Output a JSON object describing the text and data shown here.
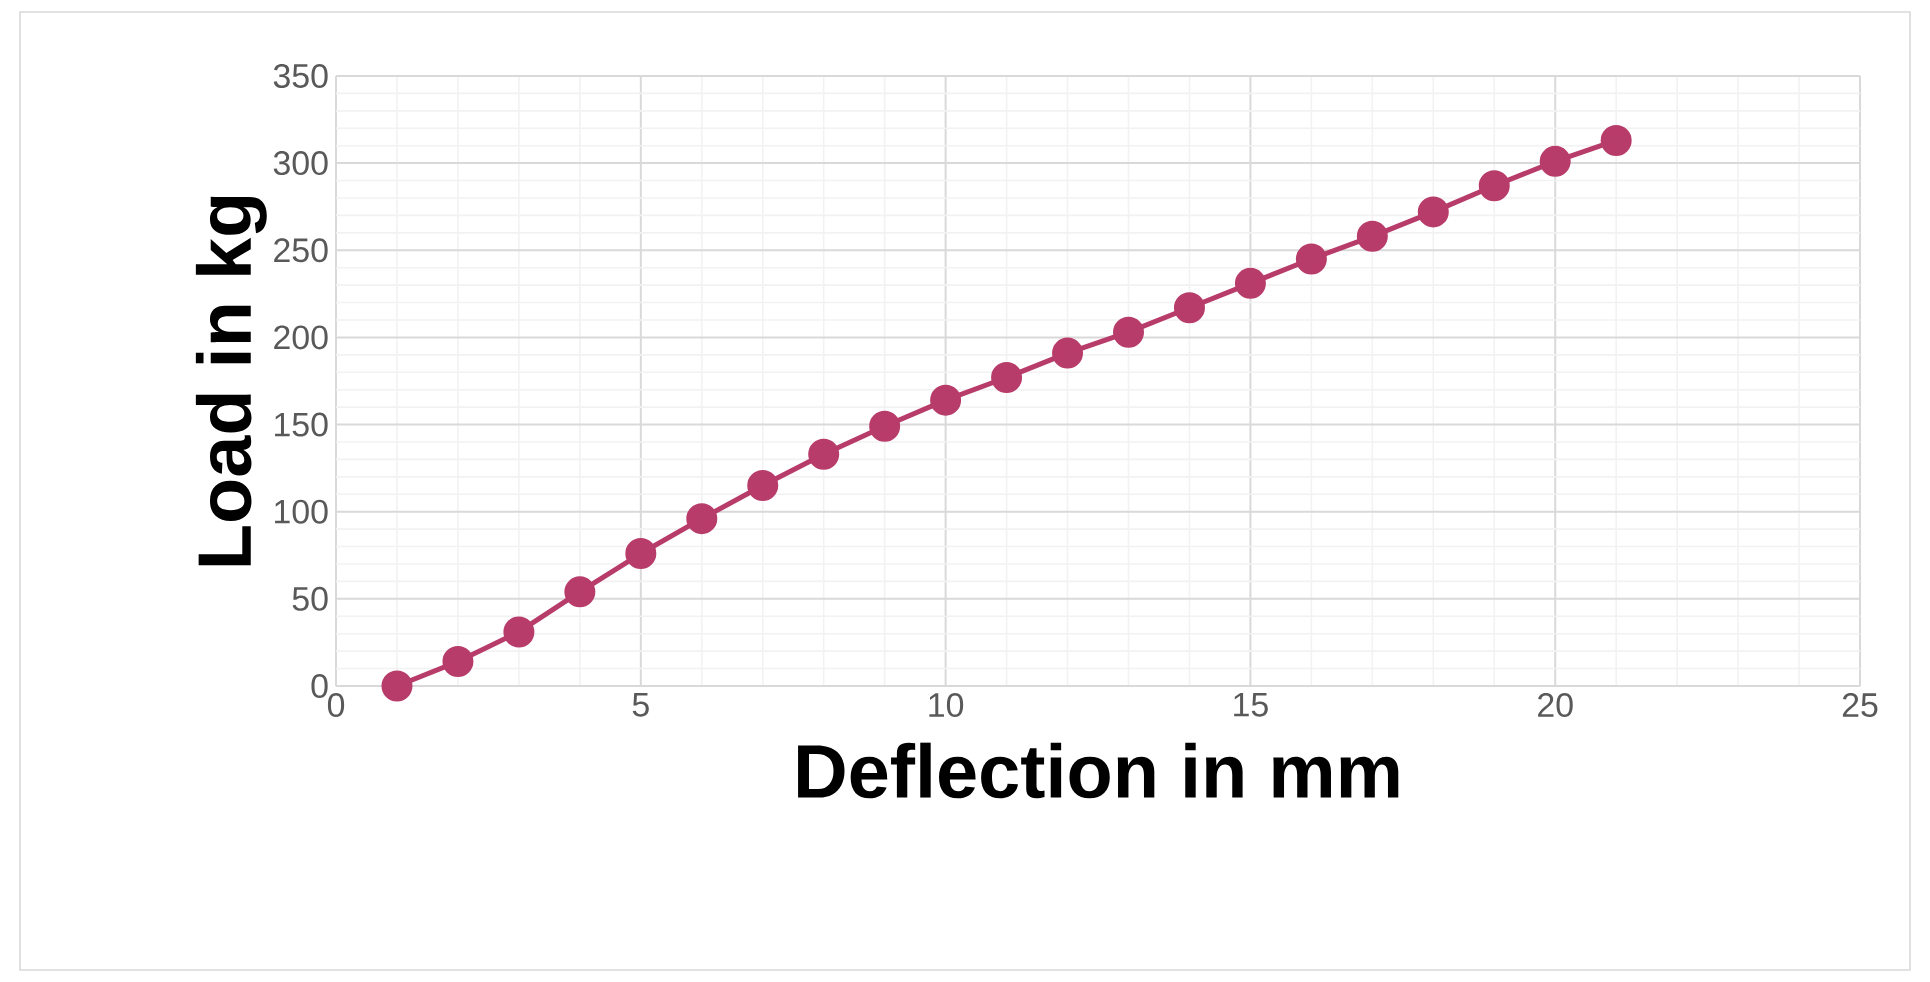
{
  "chart_data": {
    "type": "line",
    "xlabel": "Deflection  in mm",
    "ylabel": "Load in kg",
    "x": [
      1,
      2,
      3,
      4,
      5,
      6,
      7,
      8,
      9,
      10,
      11,
      12,
      13,
      14,
      15,
      16,
      17,
      18,
      19,
      20,
      21
    ],
    "series": [
      {
        "color": "#b83c69",
        "values": [
          0,
          14,
          31,
          54,
          76,
          96,
          115,
          133,
          149,
          164,
          177,
          191,
          203,
          217,
          231,
          245,
          258,
          272,
          287,
          301,
          313
        ]
      }
    ],
    "xlim": [
      0,
      25
    ],
    "xticks": [
      0,
      5,
      10,
      15,
      20,
      25
    ],
    "ylim": [
      0,
      350
    ],
    "yticks": [
      0,
      50,
      100,
      150,
      200,
      250,
      300,
      350
    ],
    "grid": true,
    "marker": "circle",
    "line_style": "solid"
  }
}
